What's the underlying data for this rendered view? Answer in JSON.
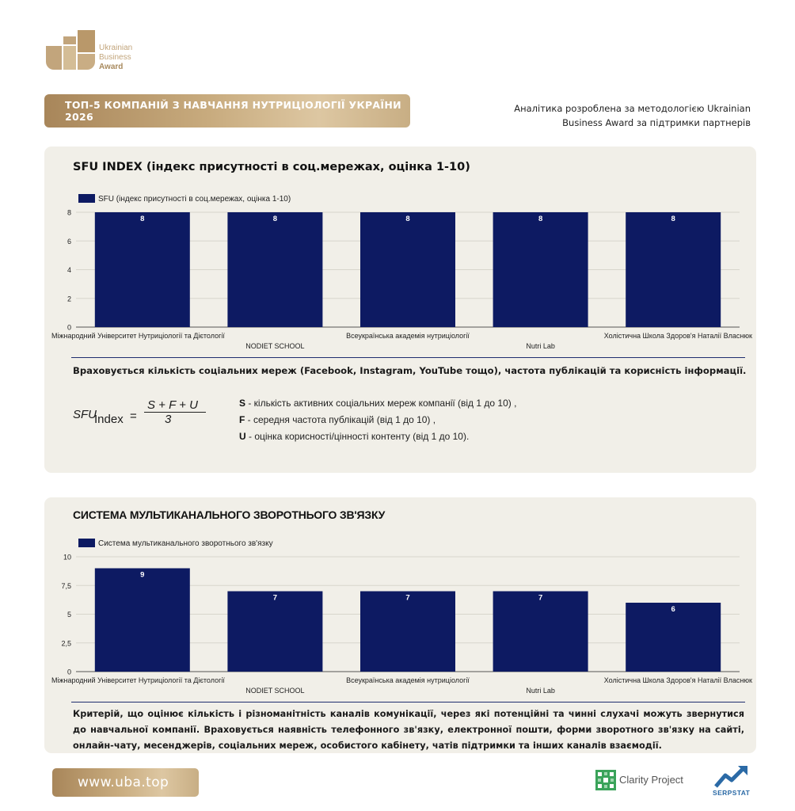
{
  "logo": {
    "line1": "Ukrainian",
    "line2": "Business",
    "line3": "Award"
  },
  "header": {
    "title": "ТОП-5 КОМПАНІЙ З НАВЧАННЯ НУТРИЦІОЛОГІЇ УКРАЇНИ 2026",
    "intro_line1": "Аналітика розроблена за методологією Ukrainian",
    "intro_line2": "Business Award за підтримки партнерів"
  },
  "sfu_section": {
    "title": "SFU INDEX (індекс присутності в соц.мережах, оцінка 1-10)",
    "note": "Враховується кількість соціальних мереж (Facebook, Instagram, YouTube тощо), частота публікацій та корисність інформації.",
    "formula": {
      "lhs": "SFU",
      "sub": "Index",
      "eq": "=",
      "numerator": "S + F + U",
      "denominator": "3"
    },
    "defs": [
      {
        "key": "S",
        "text": " - кількість активних соціальних мереж компанії (від 1 до 10) ,"
      },
      {
        "key": "F",
        "text": " - середня частота публікацій (від 1 до 10) ,"
      },
      {
        "key": "U",
        "text": " - оцінка корисності/цінності контенту (від 1 до 10)."
      }
    ]
  },
  "feedback_section": {
    "title": "СИСТЕМА МУЛЬТИКАНАЛЬНОГО ЗВОРОТНЬОГО ЗВ'ЯЗКУ",
    "note": "Критерій, що оцінює кількість і різноманітність каналів комунікації, через які потенційні та чинні слухачі можуть звернутися до навчальної компанії. Враховується наявність телефонного зв'язку, електронної пошти, форми зворотного зв'язку на сайті, онлайн-чату, месенджерів, соціальних мереж, особистого кабінету, чатів підтримки та інших каналів взаємодії."
  },
  "chart_data": [
    {
      "type": "bar",
      "categories": [
        "Міжнародний Університет Нутриціології та Дієтології",
        "NODIET SCHOOL",
        "Всеукраїнська академія нутриціології",
        "Nutri Lab",
        "Холістична Школа Здоров'я Наталії Власнюк"
      ],
      "series": [
        {
          "name": "SFU (індекс присутності в соц.мережах, оцінка 1-10)",
          "values": [
            8,
            8,
            8,
            8,
            8
          ]
        }
      ],
      "yticks": [
        "0",
        "2",
        "4",
        "6",
        "8"
      ],
      "ylim": [
        0,
        8
      ],
      "grid": true,
      "legend": "top-left",
      "data_labels": true,
      "color": "#0d1a62"
    },
    {
      "type": "bar",
      "categories": [
        "Міжнародний Університет Нутриціології та Дієтології",
        "NODIET SCHOOL",
        "Всеукраїнська академія нутриціології",
        "Nutri Lab",
        "Холістична Школа Здоров'я Наталії Власнюк"
      ],
      "series": [
        {
          "name": "Система мультиканального зворотнього зв'язку",
          "values": [
            9,
            7,
            7,
            7,
            6
          ]
        }
      ],
      "yticks": [
        "0",
        "2,5",
        "5",
        "7,5",
        "10"
      ],
      "ylim": [
        0,
        10
      ],
      "grid": true,
      "legend": "top-left",
      "data_labels": true,
      "color": "#0d1a62"
    }
  ],
  "footer": {
    "site": "www.uba.top",
    "partner1": "Clarity Project",
    "partner2": "SERPSTAT"
  }
}
